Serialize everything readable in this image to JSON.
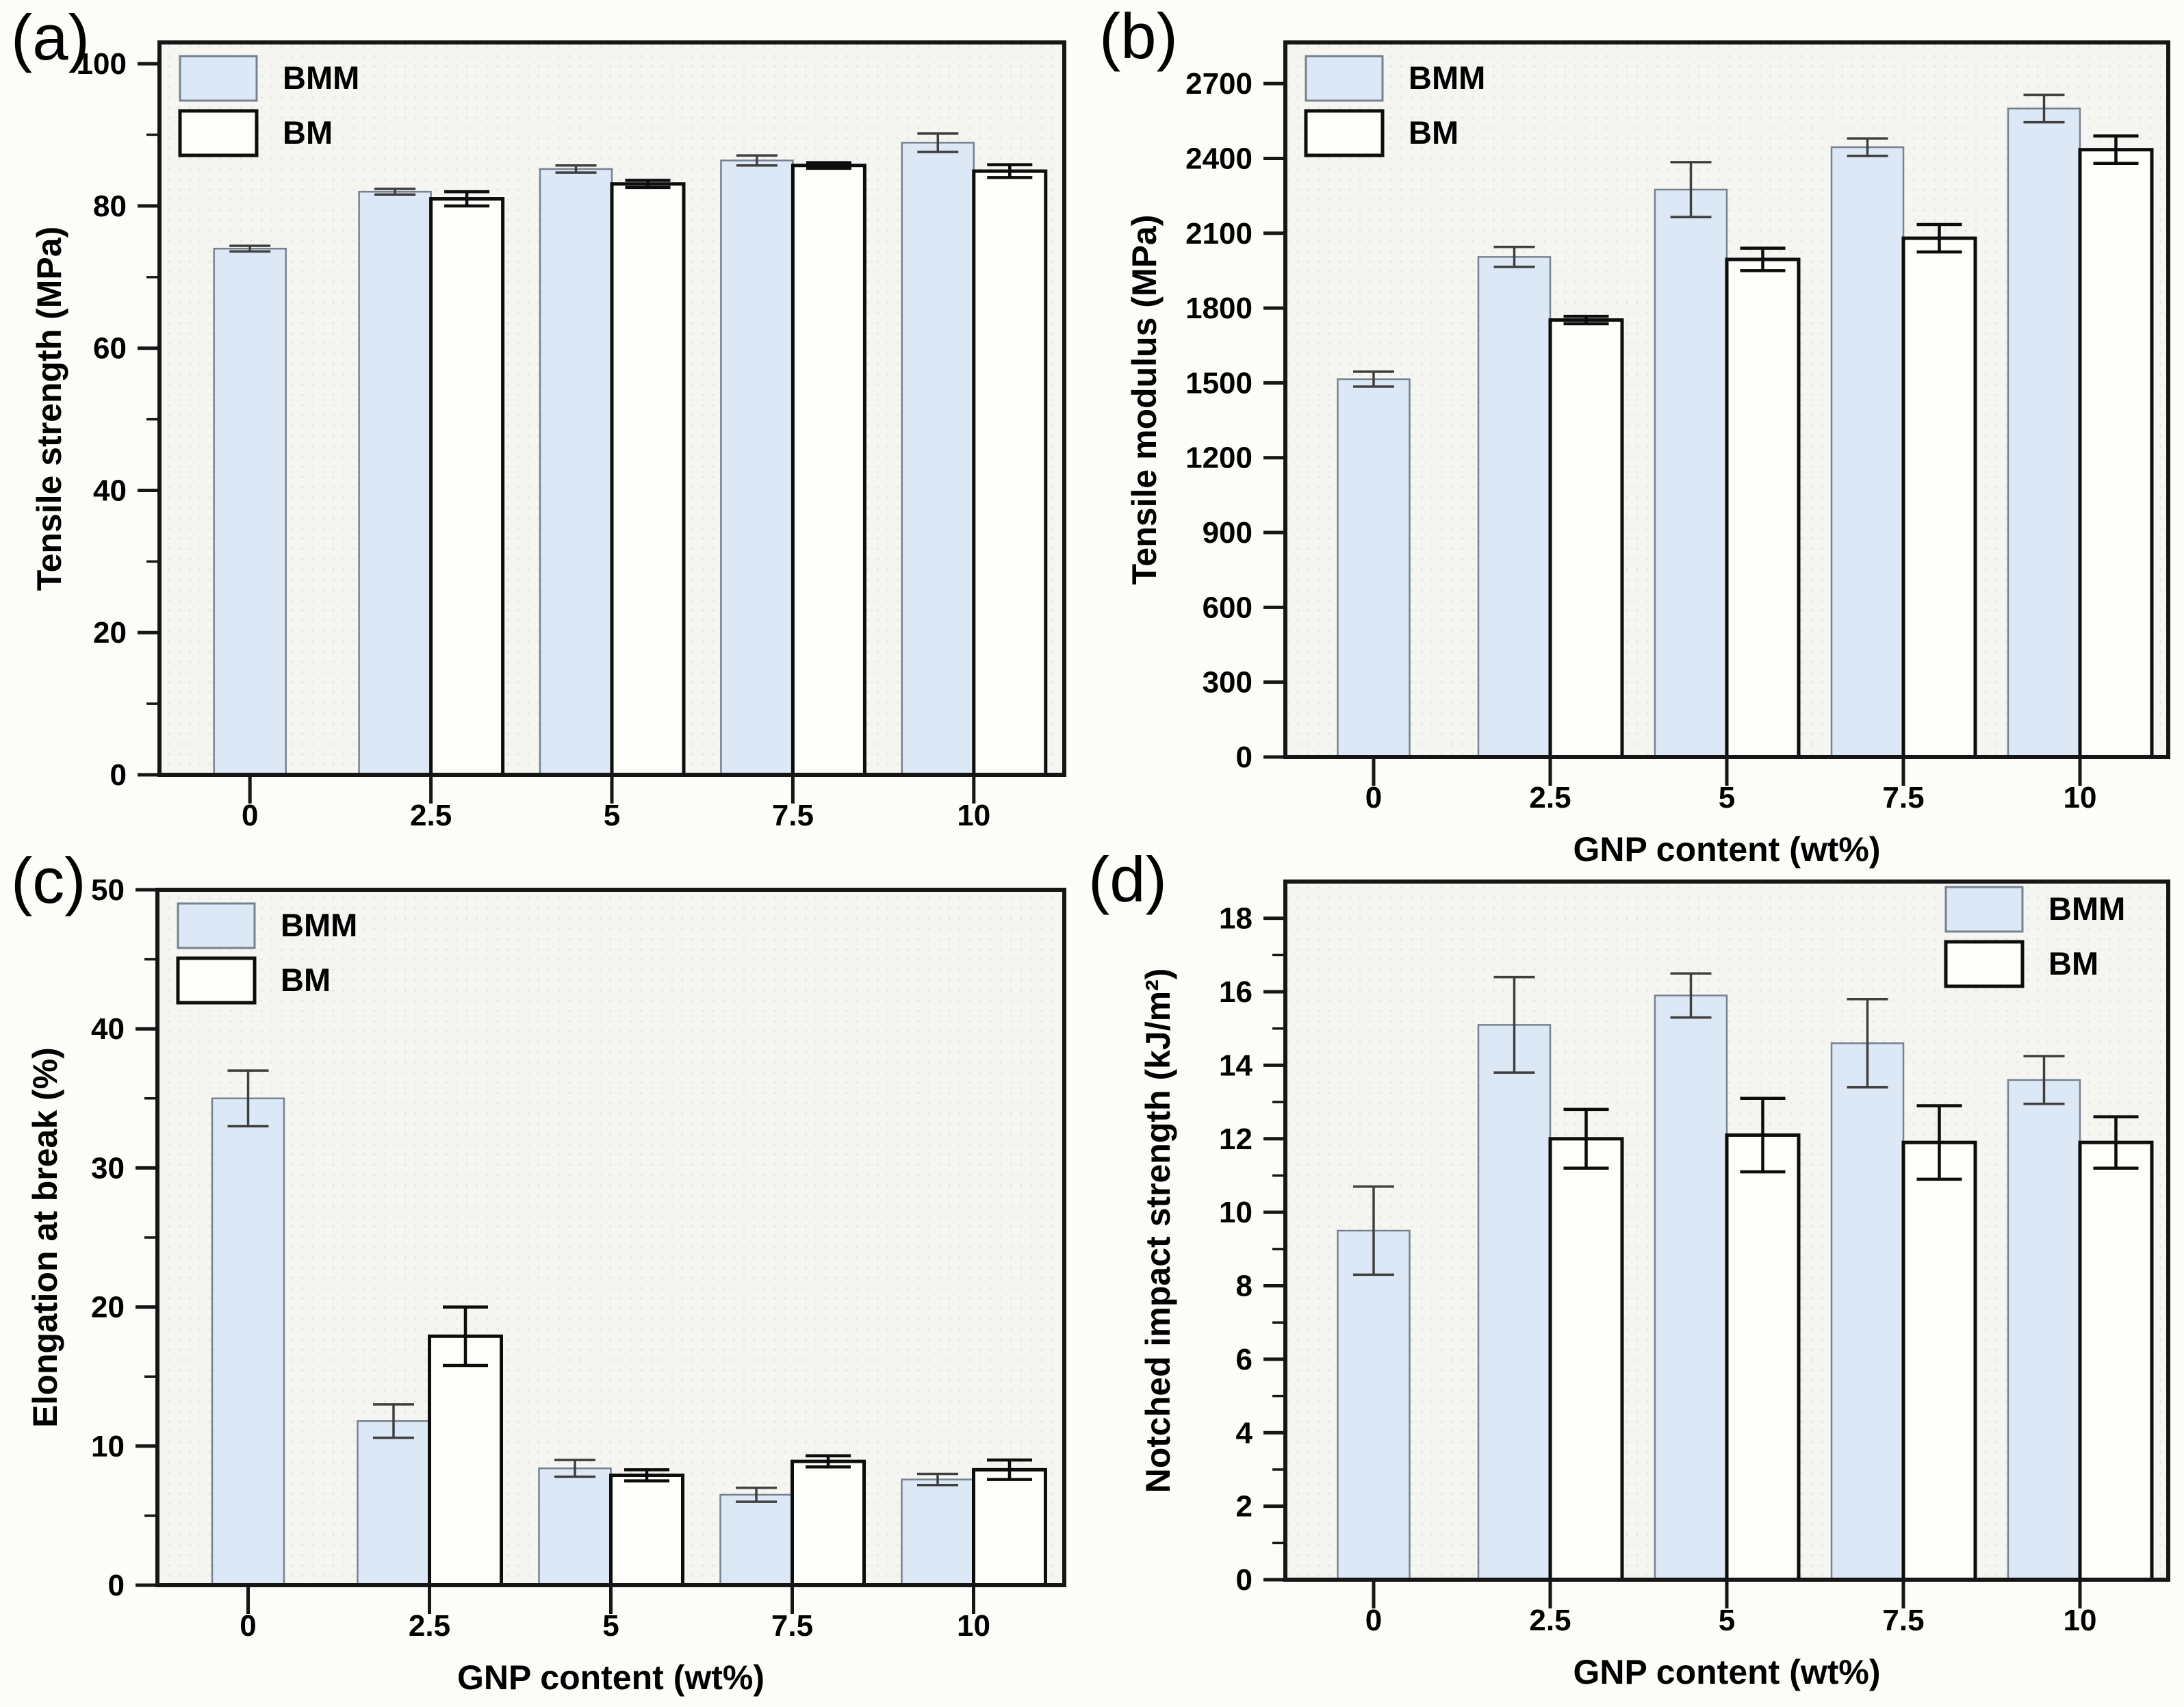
{
  "figure": {
    "bg": "#fcfcf9",
    "plot_bg": "#f5f6f1",
    "frame_color": "#161616",
    "bmm_fill": "#dce8f5",
    "bmm_border": "#76828e",
    "bm_fill": "#fdfdfa",
    "bm_border": "#0d0d0d",
    "err_bmm": "#3f3f3f",
    "err_bm": "#0c0c0c"
  },
  "chart_data": [
    {
      "panel": "a",
      "tag": "(a)",
      "type": "bar",
      "ylabel": "Tensile strength (MPa)",
      "xlabel": "",
      "categories": [
        "0",
        "2.5",
        "5",
        "7.5",
        "10"
      ],
      "ylim": [
        0,
        103
      ],
      "yticks": [
        0,
        20,
        40,
        60,
        80,
        100
      ],
      "yminor": 10,
      "legend_position": "top-left",
      "grid": false,
      "series": [
        {
          "name": "BMM",
          "values": [
            74.0,
            82.0,
            85.2,
            86.4,
            88.9
          ],
          "errors": [
            0.4,
            0.4,
            0.5,
            0.7,
            1.3
          ]
        },
        {
          "name": "BM",
          "values": [
            null,
            81.0,
            83.1,
            85.7,
            84.9
          ],
          "errors": [
            null,
            1.0,
            0.5,
            0.4,
            0.9
          ]
        }
      ]
    },
    {
      "panel": "b",
      "tag": "(b)",
      "type": "bar",
      "ylabel": "Tensile modulus (MPa)",
      "xlabel": "GNP content (wt%)",
      "categories": [
        "0",
        "2.5",
        "5",
        "7.5",
        "10"
      ],
      "ylim": [
        0,
        2865
      ],
      "yticks": [
        0,
        300,
        600,
        900,
        1200,
        1500,
        1800,
        2100,
        2400,
        2700
      ],
      "yminor": null,
      "legend_position": "top-left",
      "grid": false,
      "series": [
        {
          "name": "BMM",
          "values": [
            1515,
            2005,
            2275,
            2445,
            2600
          ],
          "errors": [
            30,
            40,
            110,
            35,
            55
          ]
        },
        {
          "name": "BM",
          "values": [
            null,
            1752,
            1995,
            2080,
            2435
          ],
          "errors": [
            null,
            15,
            45,
            55,
            55
          ]
        }
      ]
    },
    {
      "panel": "c",
      "tag": "(c)",
      "type": "bar",
      "ylabel": "Elongation at break (%)",
      "xlabel": "GNP content (wt%)",
      "categories": [
        "0",
        "2.5",
        "5",
        "7.5",
        "10"
      ],
      "ylim": [
        0,
        50
      ],
      "yticks": [
        0,
        10,
        20,
        30,
        40,
        50
      ],
      "yminor": 5,
      "legend_position": "top-left",
      "grid": false,
      "series": [
        {
          "name": "BMM",
          "values": [
            35.0,
            11.8,
            8.4,
            6.5,
            7.6
          ],
          "errors": [
            2.0,
            1.2,
            0.6,
            0.5,
            0.4
          ]
        },
        {
          "name": "BM",
          "values": [
            null,
            17.9,
            7.9,
            8.9,
            8.3
          ],
          "errors": [
            null,
            2.1,
            0.4,
            0.4,
            0.7
          ]
        }
      ]
    },
    {
      "panel": "d",
      "tag": "(d)",
      "type": "bar",
      "ylabel": "Notched impact strength (kJ/m²)",
      "xlabel": "GNP content (wt%)",
      "categories": [
        "0",
        "2.5",
        "5",
        "7.5",
        "10"
      ],
      "ylim": [
        0,
        19
      ],
      "yticks": [
        0,
        2,
        4,
        6,
        8,
        10,
        12,
        14,
        16,
        18
      ],
      "yminor": 1,
      "legend_position": "top-right",
      "grid": false,
      "series": [
        {
          "name": "BMM",
          "values": [
            9.5,
            15.1,
            15.9,
            14.6,
            13.6
          ],
          "errors": [
            1.2,
            1.3,
            0.6,
            1.2,
            0.65
          ]
        },
        {
          "name": "BM",
          "values": [
            null,
            12.0,
            12.1,
            11.9,
            11.9
          ],
          "errors": [
            null,
            0.8,
            1.0,
            1.0,
            0.7
          ]
        }
      ]
    }
  ]
}
